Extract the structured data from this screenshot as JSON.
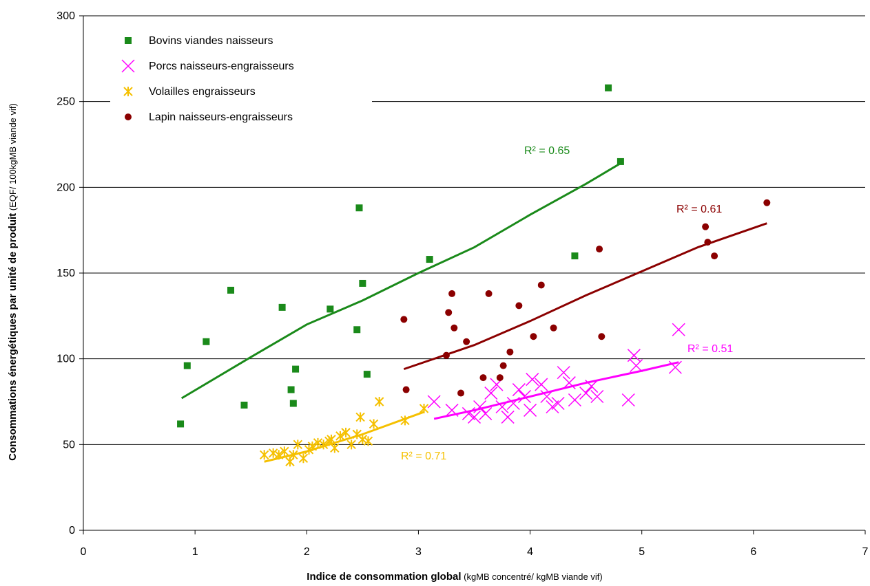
{
  "chart_data": {
    "type": "scatter",
    "xlabel_bold": "Indice de consommation global",
    "xlabel_rest": " (kgMB concentré/ kgMB viande vif)",
    "ylabel_bold": "Consommations énergétiques par unité de produit",
    "ylabel_rest": " (EQF/ 100kgMB viande vif)",
    "xlim": [
      0,
      7
    ],
    "ylim": [
      0,
      300
    ],
    "x_ticks": [
      "0",
      "1",
      "2",
      "3",
      "4",
      "5",
      "6",
      "7"
    ],
    "y_ticks": [
      "0",
      "50",
      "100",
      "150",
      "200",
      "250",
      "300"
    ],
    "grid": "horizontal",
    "legend_position": "top-left",
    "series": [
      {
        "name": "Bovins viandes naisseurs",
        "marker": "square",
        "color": "#1a8a1a",
        "r2_label": "R² = 0.65",
        "points": [
          [
            0.87,
            62
          ],
          [
            0.93,
            96
          ],
          [
            1.1,
            110
          ],
          [
            1.32,
            140
          ],
          [
            1.44,
            73
          ],
          [
            1.78,
            130
          ],
          [
            1.86,
            82
          ],
          [
            1.88,
            74
          ],
          [
            1.9,
            94
          ],
          [
            2.21,
            129
          ],
          [
            2.45,
            117
          ],
          [
            2.47,
            188
          ],
          [
            2.5,
            144
          ],
          [
            2.54,
            91
          ],
          [
            3.1,
            158
          ],
          [
            4.4,
            160
          ],
          [
            4.7,
            258
          ],
          [
            4.81,
            215
          ]
        ],
        "trend": [
          [
            0.88,
            77
          ],
          [
            1.5,
            101
          ],
          [
            2.0,
            120
          ],
          [
            2.5,
            134
          ],
          [
            3.0,
            150
          ],
          [
            3.5,
            165
          ],
          [
            4.0,
            184
          ],
          [
            4.5,
            202
          ],
          [
            4.81,
            214
          ]
        ]
      },
      {
        "name": "Porcs naisseurs-engraisseurs",
        "marker": "x",
        "color": "#ff00ff",
        "r2_label": "R² = 0.51",
        "points": [
          [
            3.14,
            75
          ],
          [
            3.3,
            70
          ],
          [
            3.45,
            68
          ],
          [
            3.5,
            66
          ],
          [
            3.55,
            72
          ],
          [
            3.6,
            68
          ],
          [
            3.65,
            80
          ],
          [
            3.7,
            85
          ],
          [
            3.75,
            72
          ],
          [
            3.8,
            66
          ],
          [
            3.85,
            74
          ],
          [
            3.9,
            82
          ],
          [
            3.95,
            78
          ],
          [
            4.0,
            70
          ],
          [
            4.02,
            88
          ],
          [
            4.1,
            85
          ],
          [
            4.15,
            78
          ],
          [
            4.2,
            72
          ],
          [
            4.25,
            74
          ],
          [
            4.3,
            92
          ],
          [
            4.35,
            86
          ],
          [
            4.4,
            76
          ],
          [
            4.5,
            80
          ],
          [
            4.55,
            84
          ],
          [
            4.6,
            78
          ],
          [
            4.88,
            76
          ],
          [
            4.93,
            102
          ],
          [
            4.95,
            96
          ],
          [
            5.3,
            95
          ],
          [
            5.33,
            117
          ]
        ],
        "trend": [
          [
            3.14,
            65
          ],
          [
            3.5,
            70
          ],
          [
            4.0,
            78
          ],
          [
            4.5,
            86
          ],
          [
            5.0,
            93
          ],
          [
            5.33,
            98
          ]
        ]
      },
      {
        "name": "Volailles engraisseurs",
        "marker": "asterisk",
        "color": "#f5c000",
        "r2_label": "R² = 0.71",
        "points": [
          [
            1.62,
            44
          ],
          [
            1.7,
            45
          ],
          [
            1.75,
            44
          ],
          [
            1.8,
            46
          ],
          [
            1.85,
            40
          ],
          [
            1.88,
            44
          ],
          [
            1.92,
            50
          ],
          [
            1.97,
            42
          ],
          [
            2.02,
            47
          ],
          [
            2.05,
            49
          ],
          [
            2.1,
            51
          ],
          [
            2.15,
            50
          ],
          [
            2.2,
            52
          ],
          [
            2.22,
            53
          ],
          [
            2.25,
            48
          ],
          [
            2.3,
            55
          ],
          [
            2.35,
            57
          ],
          [
            2.4,
            50
          ],
          [
            2.45,
            56
          ],
          [
            2.48,
            66
          ],
          [
            2.5,
            53
          ],
          [
            2.55,
            52
          ],
          [
            2.6,
            62
          ],
          [
            2.65,
            75
          ],
          [
            2.88,
            64
          ],
          [
            3.05,
            71
          ]
        ],
        "trend": [
          [
            1.62,
            40
          ],
          [
            2.0,
            46
          ],
          [
            2.5,
            56
          ],
          [
            3.05,
            69
          ]
        ]
      },
      {
        "name": "Lapin naisseurs-engraisseurs",
        "marker": "circle",
        "color": "#8b0000",
        "r2_label": "R² = 0.61",
        "points": [
          [
            2.87,
            123
          ],
          [
            2.89,
            82
          ],
          [
            3.25,
            102
          ],
          [
            3.27,
            127
          ],
          [
            3.3,
            138
          ],
          [
            3.32,
            118
          ],
          [
            3.38,
            80
          ],
          [
            3.43,
            110
          ],
          [
            3.58,
            89
          ],
          [
            3.63,
            138
          ],
          [
            3.73,
            89
          ],
          [
            3.76,
            96
          ],
          [
            3.82,
            104
          ],
          [
            3.9,
            131
          ],
          [
            4.03,
            113
          ],
          [
            4.1,
            143
          ],
          [
            4.21,
            118
          ],
          [
            4.62,
            164
          ],
          [
            4.64,
            113
          ],
          [
            5.57,
            177
          ],
          [
            5.59,
            168
          ],
          [
            5.65,
            160
          ],
          [
            6.12,
            191
          ]
        ],
        "trend": [
          [
            2.87,
            94
          ],
          [
            3.5,
            108
          ],
          [
            4.0,
            122
          ],
          [
            4.5,
            137
          ],
          [
            5.0,
            151
          ],
          [
            5.5,
            165
          ],
          [
            6.12,
            179
          ]
        ]
      }
    ]
  }
}
